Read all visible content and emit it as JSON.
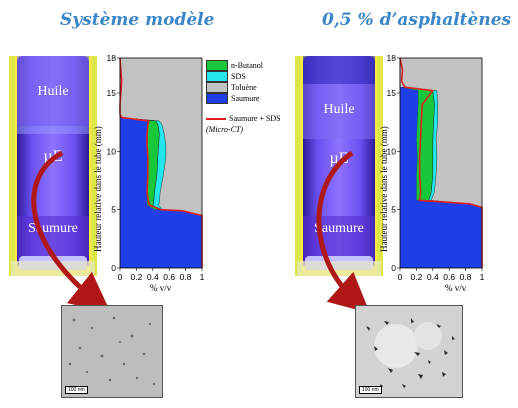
{
  "titles": {
    "left": "Système modèle",
    "right": "0,5 % d’asphaltènes"
  },
  "tube_labels": {
    "oil": "Huile",
    "micro": "µE",
    "brine": "Saumure"
  },
  "scale_bar": "100 nm",
  "colors": {
    "title": "#3a86c8",
    "butanol": "#17c93a",
    "sds": "#22e6ec",
    "toluene": "#c2c2c2",
    "saumure": "#1f3fe6",
    "saumure_sds": "#e02020"
  },
  "chart_data": [
    {
      "type": "area",
      "xlabel": "% v/v",
      "ylabel": "Hauteur relative dans le tube (mm)",
      "xlim": [
        0,
        1
      ],
      "ylim": [
        0,
        18
      ],
      "xticks": [
        "0",
        "0,2",
        "0,4",
        "0,6",
        "0,8",
        "1"
      ],
      "yticks": [
        "0",
        "5",
        "10",
        "15",
        "18"
      ],
      "legend": [
        "n-Butanol",
        "SDS",
        "Toluène",
        "Saumure",
        "Saumure + SDS",
        "(Micro-CT)"
      ],
      "heights": [
        0,
        4.5,
        4.9,
        5.0,
        5.4,
        5.6,
        6.5,
        8,
        9.5,
        10.5,
        11.5,
        12.3,
        12.6,
        12.9,
        13.2,
        14,
        16,
        18
      ],
      "series": [
        {
          "name": "Saumure",
          "values": [
            1.0,
            1.0,
            0.72,
            0.42,
            0.33,
            0.33,
            0.32,
            0.33,
            0.34,
            0.33,
            0.34,
            0.33,
            0.34,
            0.0,
            0.0,
            0.0,
            0.0,
            0.0
          ]
        },
        {
          "name": "n-Butanol",
          "values": [
            0.0,
            0.0,
            0.0,
            0.04,
            0.07,
            0.08,
            0.1,
            0.12,
            0.12,
            0.14,
            0.14,
            0.13,
            0.1,
            0.0,
            0.0,
            0.0,
            0.0,
            0.0
          ]
        },
        {
          "name": "SDS",
          "values": [
            0.0,
            0.0,
            0.05,
            0.06,
            0.07,
            0.07,
            0.07,
            0.08,
            0.1,
            0.09,
            0.06,
            0.05,
            0.04,
            0.0,
            0.0,
            0.0,
            0.0,
            0.0
          ]
        },
        {
          "name": "Saumure + SDS",
          "line": true,
          "values": [
            1.0,
            1.0,
            0.76,
            0.5,
            0.36,
            0.35,
            0.33,
            0.34,
            0.34,
            0.33,
            0.33,
            0.34,
            0.35,
            0.02,
            0.0,
            0.0,
            0.02,
            0.0
          ]
        }
      ]
    },
    {
      "type": "area",
      "xlabel": "% v/v",
      "ylabel": "Hauteur relative dans le tube (mm)",
      "xlim": [
        0,
        1
      ],
      "ylim": [
        0,
        18
      ],
      "xticks": [
        "0",
        "0,2",
        "0,4",
        "0,6",
        "0,8",
        "1"
      ],
      "yticks": [
        "0",
        "5",
        "10",
        "15",
        "18"
      ],
      "heights": [
        0,
        5.2,
        5.5,
        5.8,
        6.5,
        8,
        9.5,
        11,
        12.5,
        14,
        15.2,
        15.5,
        16,
        17,
        18
      ],
      "series": [
        {
          "name": "Saumure",
          "values": [
            1.0,
            1.0,
            0.82,
            0.2,
            0.2,
            0.2,
            0.21,
            0.2,
            0.21,
            0.22,
            0.22,
            0.0,
            0.0,
            0.0,
            0.0
          ]
        },
        {
          "name": "n-Butanol",
          "values": [
            0.0,
            0.0,
            0.0,
            0.15,
            0.18,
            0.2,
            0.19,
            0.2,
            0.2,
            0.2,
            0.18,
            0.0,
            0.0,
            0.0,
            0.0
          ]
        },
        {
          "name": "SDS",
          "values": [
            0.0,
            0.0,
            0.0,
            0.03,
            0.04,
            0.04,
            0.05,
            0.04,
            0.05,
            0.04,
            0.05,
            0.0,
            0.0,
            0.0,
            0.0
          ]
        },
        {
          "name": "Saumure + SDS",
          "line": true,
          "values": [
            1.0,
            1.0,
            0.85,
            0.24,
            0.25,
            0.24,
            0.24,
            0.25,
            0.26,
            0.27,
            0.4,
            0.06,
            0.02,
            0.03,
            0.0
          ]
        }
      ]
    }
  ]
}
